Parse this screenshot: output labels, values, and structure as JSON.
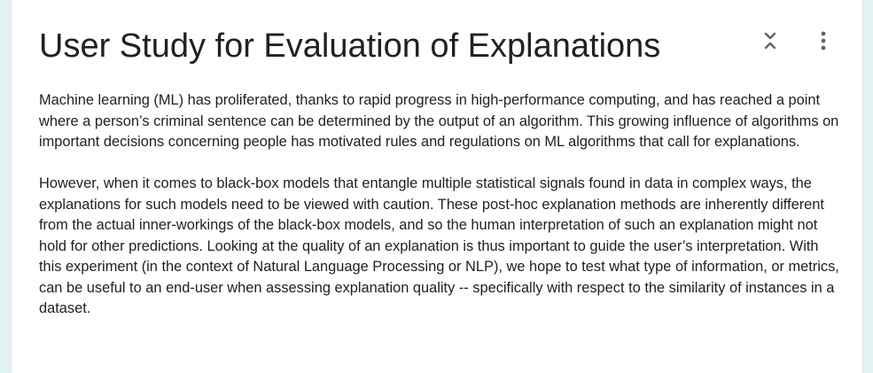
{
  "form": {
    "title": "User Study for Evaluation of Explanations",
    "description": [
      "Machine learning (ML) has proliferated, thanks to rapid progress in high-performance computing, and has reached a point where a person’s criminal sentence can be determined by the output of an algorithm. This growing influence of algorithms on important decisions concerning people has motivated rules and regulations on ML algorithms that call for explanations.",
      "However, when it comes to black-box models that entangle multiple statistical signals found in data in complex ways, the explanations for such models need to be viewed with caution. These post-hoc explanation methods are inherently different from the actual inner-workings of the black-box models, and so the human interpretation of such an explanation might not hold for other predictions. Looking at the quality of an explanation is thus important to guide the user’s interpretation. With this experiment (in the context of Natural Language Processing or NLP), we hope to test what type of information, or metrics, can be useful to an end-user when assessing explanation quality -- specifically with respect to the similarity of instances in a dataset."
    ]
  },
  "toolbar": {
    "collapse_icon": "unfold-less-icon",
    "more_icon": "more-vert-icon"
  },
  "colors": {
    "background": "#e0f2f1",
    "card": "#ffffff",
    "text": "#202124",
    "icon": "#5f6368"
  }
}
